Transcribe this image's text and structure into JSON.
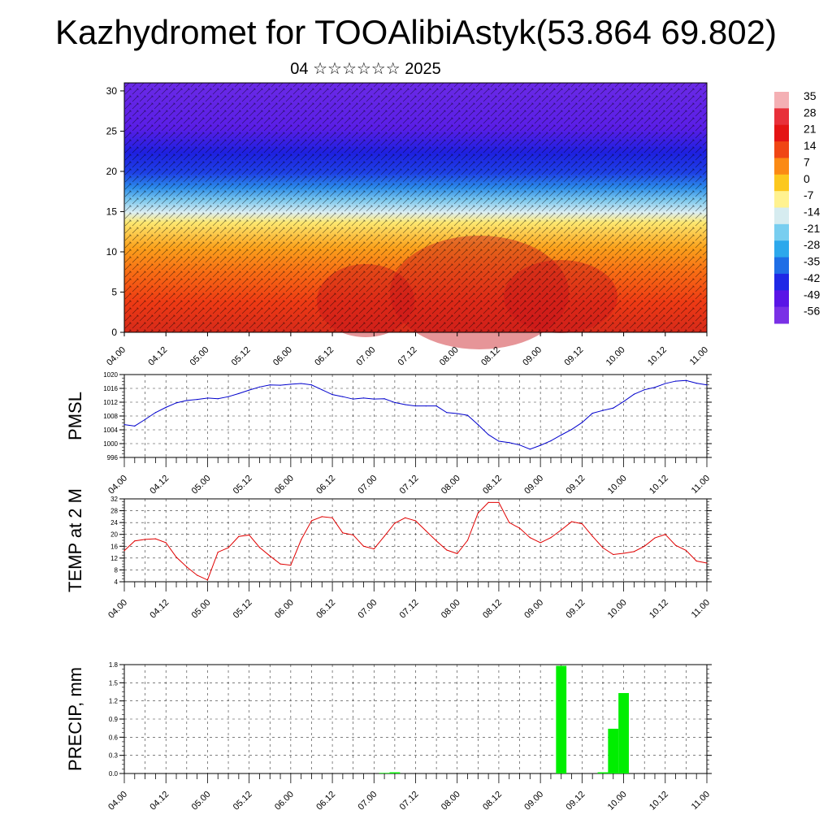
{
  "title": "Kazhydromet for TOOAlibiAstyk(53.864 69.802)",
  "subtitle": "04 ☆☆☆☆☆☆ 2025",
  "chart_data": [
    {
      "id": "cross-section",
      "type": "heatmap",
      "x_ticks": [
        "04.00",
        "04.12",
        "05.00",
        "05.12",
        "06.00",
        "06.12",
        "07.00",
        "07.12",
        "08.00",
        "08.12",
        "09.00",
        "09.12",
        "10.00",
        "10.12",
        "11.00"
      ],
      "y_ticks": [
        "0",
        "5",
        "10",
        "15",
        "20",
        "25",
        "30"
      ],
      "ylim": [
        0,
        31
      ],
      "description_levels": [
        {
          "from": 0,
          "to": 5,
          "temp": 20
        },
        {
          "from": 5,
          "to": 10,
          "temp": 14
        },
        {
          "from": 10,
          "to": 15,
          "temp": 2
        },
        {
          "from": 15,
          "to": 18,
          "temp": -20
        },
        {
          "from": 18,
          "to": 22,
          "temp": -45
        },
        {
          "from": 22,
          "to": 31,
          "temp": -56
        }
      ],
      "colorbar": {
        "labels": [
          "35",
          "28",
          "21",
          "14",
          "7",
          "0",
          "-7",
          "-14",
          "-21",
          "-28",
          "-35",
          "-42",
          "-49",
          "-56"
        ],
        "colors": [
          "#f4b0b4",
          "#e8303a",
          "#e41414",
          "#f04614",
          "#fb8a14",
          "#fcc81e",
          "#fff290",
          "#d6ecf0",
          "#78cef0",
          "#2ca8ec",
          "#1e6ee6",
          "#1e28e6",
          "#5a14e6",
          "#7a30e6"
        ]
      }
    },
    {
      "id": "pmsl",
      "type": "line",
      "ylabel": "PMSL",
      "ylim": [
        996,
        1020
      ],
      "y_ticks": [
        "996",
        "1000",
        "1004",
        "1008",
        "1012",
        "1016",
        "1020"
      ],
      "x_ticks": [
        "04.00",
        "04.12",
        "05.00",
        "05.12",
        "06.00",
        "06.12",
        "07.00",
        "07.12",
        "08.00",
        "08.12",
        "09.00",
        "09.12",
        "10.00",
        "10.12",
        "11.00"
      ],
      "color": "#0000cc",
      "x": [
        0,
        3,
        6,
        9,
        12,
        15,
        18,
        21,
        24,
        27,
        30,
        33,
        36,
        39,
        42,
        45,
        48,
        51,
        54,
        57,
        60,
        63,
        66,
        69,
        72,
        75,
        78,
        81,
        84,
        87,
        90,
        93,
        96,
        99,
        102,
        105,
        108,
        111,
        114,
        117,
        120,
        123,
        126,
        129,
        132,
        135,
        138,
        141,
        144,
        147,
        150,
        153,
        156,
        159,
        162,
        165,
        168
      ],
      "values": [
        1005.5,
        1005.1,
        1007,
        1009,
        1010.5,
        1011.8,
        1012.5,
        1012.8,
        1013.2,
        1013,
        1013.6,
        1014.5,
        1015.5,
        1016.4,
        1017,
        1016.9,
        1017.2,
        1017.4,
        1017,
        1015.6,
        1014.2,
        1013.6,
        1012.9,
        1013.2,
        1012.9,
        1013,
        1011.9,
        1011.3,
        1010.9,
        1010.9,
        1010.9,
        1009,
        1008.7,
        1008.2,
        1005.5,
        1002.6,
        1000.7,
        1000.3,
        999.6,
        998.4,
        999.5,
        1000.8,
        1002.5,
        1004.1,
        1006.1,
        1008.8,
        1009.6,
        1010.3,
        1012.2,
        1014.3,
        1015.6,
        1016.3,
        1017.4,
        1018.1,
        1018.3,
        1017.5,
        1017
      ]
    },
    {
      "id": "temp2m",
      "type": "line",
      "ylabel": "TEMP at 2 M",
      "ylim": [
        4,
        32
      ],
      "y_ticks": [
        "4",
        "8",
        "12",
        "16",
        "20",
        "24",
        "28",
        "32"
      ],
      "x_ticks": [
        "04.00",
        "04.12",
        "05.00",
        "05.12",
        "06.00",
        "06.12",
        "07.00",
        "07.12",
        "08.00",
        "08.12",
        "09.00",
        "09.12",
        "10.00",
        "10.12",
        "11.00"
      ],
      "color": "#e00000",
      "x": [
        0,
        3,
        6,
        9,
        12,
        15,
        18,
        21,
        24,
        27,
        30,
        33,
        36,
        39,
        42,
        45,
        48,
        51,
        54,
        57,
        60,
        63,
        66,
        69,
        72,
        75,
        78,
        81,
        84,
        87,
        90,
        93,
        96,
        99,
        102,
        105,
        108,
        111,
        114,
        117,
        120,
        123,
        126,
        129,
        132,
        135,
        138,
        141,
        144,
        147,
        150,
        153,
        156,
        159,
        162,
        165,
        168
      ],
      "values": [
        14.5,
        17.8,
        18.3,
        18.5,
        17.2,
        12.3,
        9,
        6.2,
        4.6,
        14,
        15.5,
        19.3,
        19.8,
        15.6,
        12.7,
        10,
        9.6,
        18.2,
        24.6,
        26,
        25.6,
        20.5,
        19.8,
        16,
        15.1,
        19.4,
        23.8,
        25.6,
        24.6,
        21.2,
        17.8,
        14.7,
        13.5,
        18,
        27.2,
        30.8,
        30.8,
        24,
        22.1,
        18.9,
        17.2,
        18.9,
        21.5,
        24.3,
        23.6,
        19.4,
        15.5,
        13.2,
        13.6,
        14.2,
        16,
        18.8,
        20,
        16.3,
        14.6,
        11,
        10.3
      ]
    },
    {
      "id": "precip",
      "type": "bar",
      "ylabel": "PRECIP, mm",
      "ylim": [
        0,
        1.8
      ],
      "y_ticks": [
        "0.0",
        "0.3",
        "0.6",
        "0.9",
        "1.2",
        "1.5",
        "1.8"
      ],
      "x_ticks": [
        "04.00",
        "04.12",
        "05.00",
        "05.12",
        "06.00",
        "06.12",
        "07.00",
        "07.12",
        "08.00",
        "08.12",
        "09.00",
        "09.12",
        "10.00",
        "10.12",
        "11.00"
      ],
      "color": "#00ee00",
      "x": [
        75,
        78,
        126,
        129,
        138,
        141,
        144
      ],
      "values": [
        0.01,
        0.02,
        1.78,
        0.0,
        0.02,
        0.74,
        1.33
      ]
    }
  ]
}
